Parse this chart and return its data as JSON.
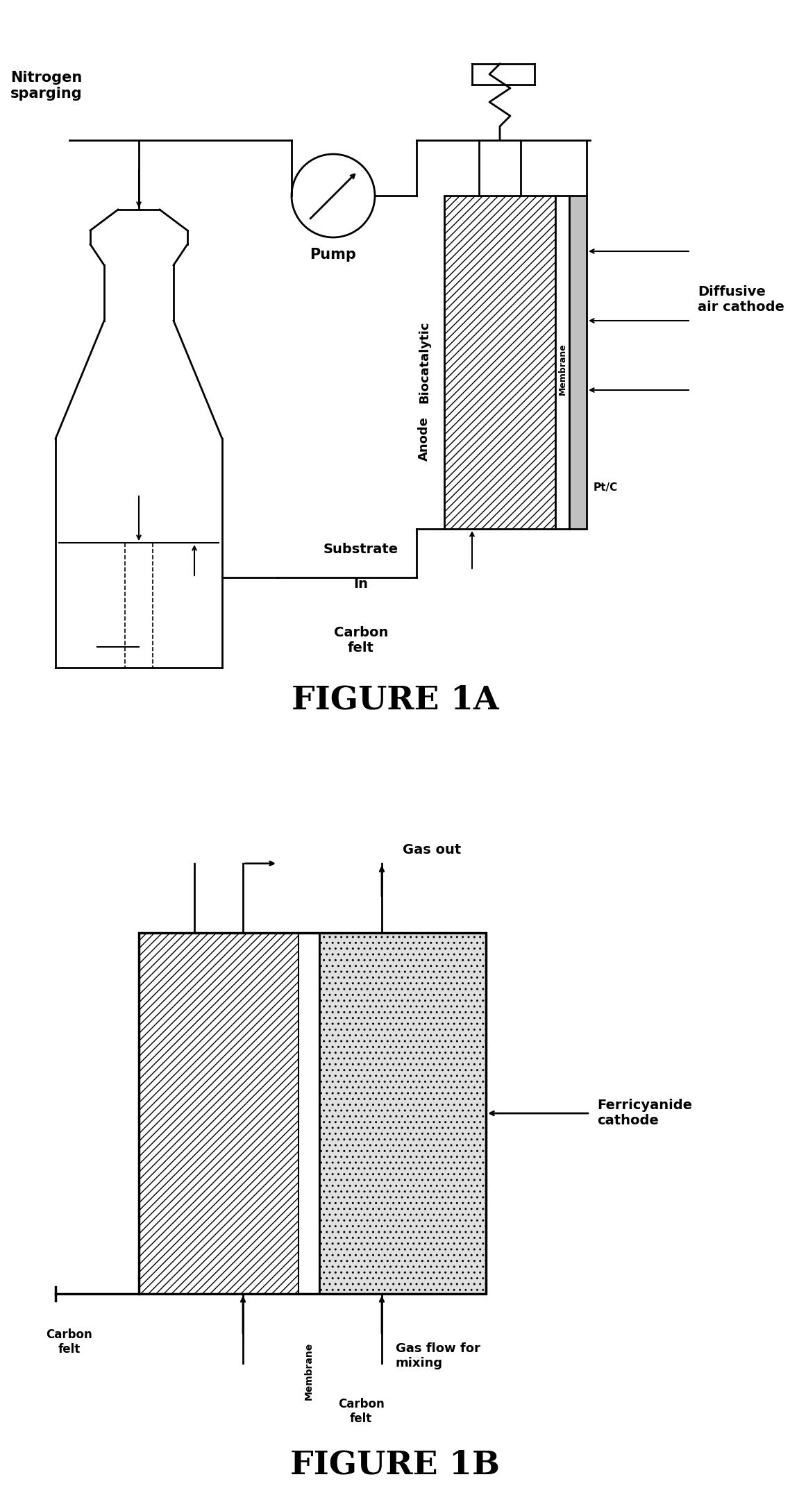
{
  "fig_width": 11.38,
  "fig_height": 21.64,
  "bg_color": "#ffffff",
  "figure1A_title": "FIGURE 1A",
  "figure1B_title": "FIGURE 1B",
  "labels_1A": {
    "nitrogen_sparging": "Nitrogen\nsparging",
    "pump": "Pump",
    "substrate_in": "Substrate",
    "substrate_in2": "In",
    "carbon_felt": "Carbon\nfelt",
    "biocatalytic": "Biocatalytic",
    "anode": "Anode",
    "diffusive_air_cathode": "Diffusive\nair cathode",
    "membrane": "Membrane",
    "ptc": "Pt/C"
  },
  "labels_1B": {
    "gas_out": "Gas out",
    "ferricyanide_cathode": "Ferricyanide\ncathode",
    "gas_flow": "Gas flow for\nmixing",
    "carbon_felt_left": "Carbon\nfelt",
    "carbon_felt_right": "Carbon\nfelt",
    "membrane": "Membrane"
  }
}
